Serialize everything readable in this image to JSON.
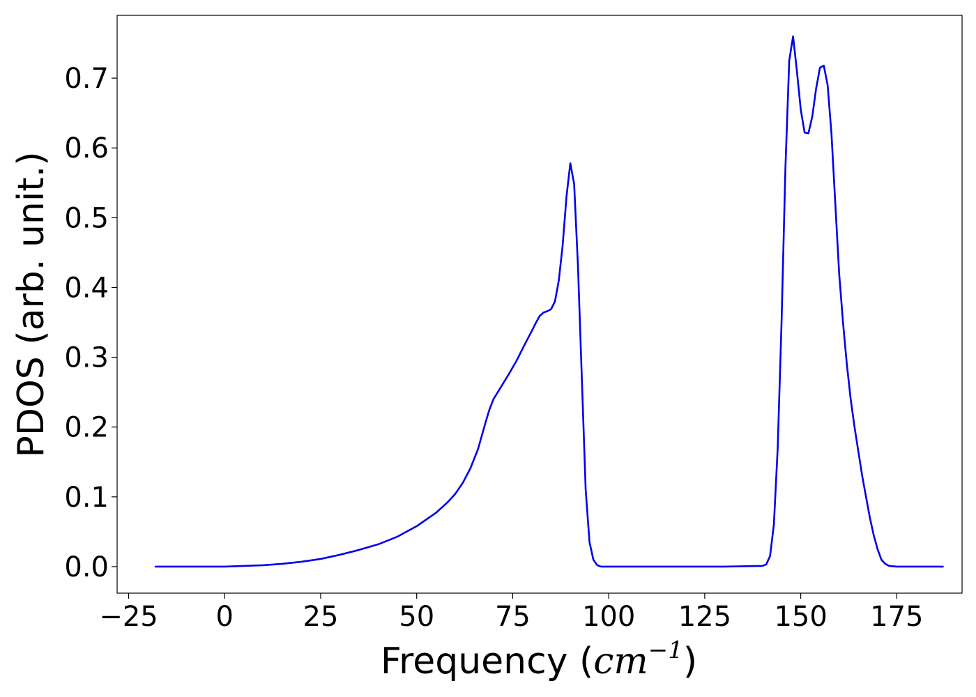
{
  "chart_data": {
    "type": "line",
    "title": "",
    "xlabel": {
      "prefix": "Frequency (",
      "math_base": "cm",
      "math_exponent": "−1",
      "suffix": ")"
    },
    "ylabel": "PDOS (arb. unit.)",
    "xlim": [
      -28,
      192
    ],
    "ylim": [
      -0.038,
      0.79
    ],
    "grid": false,
    "legend": "none",
    "x_ticks": [
      -25,
      0,
      25,
      50,
      75,
      100,
      125,
      150,
      175
    ],
    "x_tick_labels": [
      "−25",
      "0",
      "25",
      "50",
      "75",
      "100",
      "125",
      "150",
      "175"
    ],
    "y_ticks": [
      0.0,
      0.1,
      0.2,
      0.3,
      0.4,
      0.5,
      0.6,
      0.7
    ],
    "y_tick_labels": [
      "0.0",
      "0.1",
      "0.2",
      "0.3",
      "0.4",
      "0.5",
      "0.6",
      "0.7"
    ],
    "series": [
      {
        "color": "#0000ee",
        "x": [
          -18,
          0,
          5,
          10,
          15,
          20,
          25,
          30,
          35,
          40,
          45,
          50,
          55,
          58,
          60,
          62,
          64,
          66,
          68,
          69,
          70,
          72,
          74,
          76,
          78,
          80,
          81,
          82,
          83,
          84,
          85,
          86,
          87,
          88,
          89,
          90,
          91,
          92,
          93,
          94,
          95,
          96,
          97,
          98,
          100,
          110,
          120,
          130,
          140,
          141,
          142,
          143,
          144,
          145,
          146,
          147,
          148,
          149,
          150,
          151,
          152,
          153,
          154,
          155,
          156,
          157,
          158,
          159,
          160,
          161,
          162,
          163,
          164,
          165,
          166,
          167,
          168,
          169,
          170,
          171,
          172,
          173,
          175,
          187
        ],
        "y": [
          0.0,
          0.0,
          0.001,
          0.002,
          0.004,
          0.007,
          0.011,
          0.017,
          0.024,
          0.032,
          0.043,
          0.058,
          0.077,
          0.092,
          0.104,
          0.12,
          0.141,
          0.169,
          0.208,
          0.226,
          0.24,
          0.258,
          0.276,
          0.295,
          0.317,
          0.338,
          0.349,
          0.359,
          0.364,
          0.366,
          0.369,
          0.38,
          0.41,
          0.46,
          0.53,
          0.578,
          0.548,
          0.43,
          0.27,
          0.11,
          0.035,
          0.01,
          0.002,
          0.0,
          0.0,
          0.0,
          0.0,
          0.0,
          0.001,
          0.003,
          0.015,
          0.06,
          0.17,
          0.35,
          0.57,
          0.725,
          0.76,
          0.71,
          0.655,
          0.622,
          0.621,
          0.645,
          0.685,
          0.715,
          0.718,
          0.69,
          0.62,
          0.52,
          0.42,
          0.35,
          0.29,
          0.24,
          0.2,
          0.165,
          0.13,
          0.1,
          0.07,
          0.045,
          0.025,
          0.01,
          0.004,
          0.001,
          0.0,
          0.0
        ]
      }
    ]
  }
}
